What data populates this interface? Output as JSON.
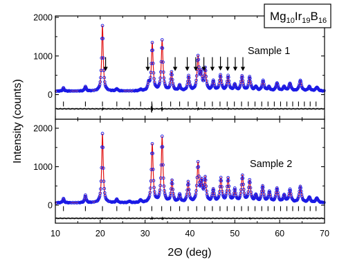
{
  "chart_data": {
    "type": "line",
    "title": "",
    "xlabel": "2Θ (deg)",
    "ylabel": "Intensity (counts)",
    "xlim": [
      10,
      70
    ],
    "x_ticks": [
      10,
      20,
      30,
      40,
      50,
      60,
      70
    ],
    "x_tick_labels": [
      "10",
      "20",
      "30",
      "40",
      "50",
      "60",
      "70"
    ],
    "formula": {
      "parts": [
        {
          "text": "Mg",
          "sub": "10"
        },
        {
          "text": "Ir",
          "sub": "19"
        },
        {
          "text": "B",
          "sub": "16"
        }
      ]
    },
    "reflection_positions": [
      11.8,
      16.7,
      20.5,
      23.7,
      26.5,
      29.0,
      31.5,
      33.7,
      35.7,
      37.7,
      39.6,
      41.5,
      43.3,
      45.0,
      46.7,
      48.3,
      49.9,
      51.5,
      53.0,
      54.5,
      56.0,
      57.4,
      58.8,
      60.2,
      61.6,
      62.9,
      64.2,
      65.5,
      66.8,
      68.1
    ],
    "colors": {
      "observed": "#1a1ae6",
      "calculated": "#e01010",
      "difference": "#000000",
      "reflection_ticks": "#000000"
    },
    "panels": [
      {
        "label": "Sample 1",
        "ylim": [
          -450,
          2000
        ],
        "y_ticks": [
          0,
          1000,
          2000
        ],
        "y_tick_labels": [
          "0",
          "1000",
          "2000"
        ],
        "background": 90,
        "peaks": [
          {
            "x": 11.8,
            "h": 80
          },
          {
            "x": 16.7,
            "h": 120
          },
          {
            "x": 20.5,
            "h": 1700
          },
          {
            "x": 23.7,
            "h": 60
          },
          {
            "x": 29.0,
            "h": 40
          },
          {
            "x": 30.8,
            "h": 180
          },
          {
            "x": 31.6,
            "h": 1230
          },
          {
            "x": 33.8,
            "h": 1300
          },
          {
            "x": 35.9,
            "h": 480
          },
          {
            "x": 37.7,
            "h": 140
          },
          {
            "x": 39.7,
            "h": 380
          },
          {
            "x": 41.8,
            "h": 860
          },
          {
            "x": 42.5,
            "h": 420
          },
          {
            "x": 43.4,
            "h": 550
          },
          {
            "x": 45.2,
            "h": 250
          },
          {
            "x": 46.8,
            "h": 400
          },
          {
            "x": 48.5,
            "h": 380
          },
          {
            "x": 50.0,
            "h": 160
          },
          {
            "x": 51.6,
            "h": 380
          },
          {
            "x": 53.3,
            "h": 360
          },
          {
            "x": 54.7,
            "h": 110
          },
          {
            "x": 56.3,
            "h": 260
          },
          {
            "x": 57.6,
            "h": 100
          },
          {
            "x": 59.4,
            "h": 200
          },
          {
            "x": 61.0,
            "h": 110
          },
          {
            "x": 62.3,
            "h": 190
          },
          {
            "x": 64.6,
            "h": 270
          },
          {
            "x": 66.6,
            "h": 110
          },
          {
            "x": 68.3,
            "h": 100
          }
        ],
        "arrows_x": [
          21.2,
          30.6,
          36.7,
          39.4,
          41.3,
          43.1,
          45.0,
          46.8,
          48.4,
          50.1,
          51.8
        ],
        "difference_spikes": [
          {
            "x": 20.5,
            "a": 40
          },
          {
            "x": 31.5,
            "a": 150
          },
          {
            "x": 33.8,
            "a": 70
          },
          {
            "x": 41.8,
            "a": 40
          },
          {
            "x": 48.5,
            "a": 30
          }
        ]
      },
      {
        "label": "Sample 2",
        "ylim": [
          -450,
          2000
        ],
        "y_ticks": [
          0,
          1000,
          2000
        ],
        "y_tick_labels": [
          "0",
          "1000",
          "2000"
        ],
        "background": 60,
        "peaks": [
          {
            "x": 11.8,
            "h": 110
          },
          {
            "x": 16.7,
            "h": 200
          },
          {
            "x": 20.5,
            "h": 1800
          },
          {
            "x": 23.7,
            "h": 90
          },
          {
            "x": 26.5,
            "h": 40
          },
          {
            "x": 29.0,
            "h": 70
          },
          {
            "x": 31.6,
            "h": 1520
          },
          {
            "x": 33.8,
            "h": 1700
          },
          {
            "x": 36.0,
            "h": 560
          },
          {
            "x": 37.7,
            "h": 200
          },
          {
            "x": 39.6,
            "h": 520
          },
          {
            "x": 41.8,
            "h": 1000
          },
          {
            "x": 42.6,
            "h": 490
          },
          {
            "x": 43.4,
            "h": 600
          },
          {
            "x": 45.2,
            "h": 330
          },
          {
            "x": 46.9,
            "h": 620
          },
          {
            "x": 48.5,
            "h": 620
          },
          {
            "x": 50.0,
            "h": 330
          },
          {
            "x": 51.7,
            "h": 690
          },
          {
            "x": 53.3,
            "h": 560
          },
          {
            "x": 54.7,
            "h": 180
          },
          {
            "x": 56.2,
            "h": 420
          },
          {
            "x": 57.7,
            "h": 270
          },
          {
            "x": 59.4,
            "h": 370
          },
          {
            "x": 61.0,
            "h": 180
          },
          {
            "x": 62.3,
            "h": 330
          },
          {
            "x": 64.6,
            "h": 420
          },
          {
            "x": 66.6,
            "h": 140
          },
          {
            "x": 68.3,
            "h": 120
          }
        ],
        "arrows_x": [],
        "difference_spikes": [
          {
            "x": 20.5,
            "a": 30
          },
          {
            "x": 31.5,
            "a": 40
          },
          {
            "x": 33.8,
            "a": 40
          },
          {
            "x": 53.3,
            "a": 20
          }
        ]
      }
    ]
  }
}
